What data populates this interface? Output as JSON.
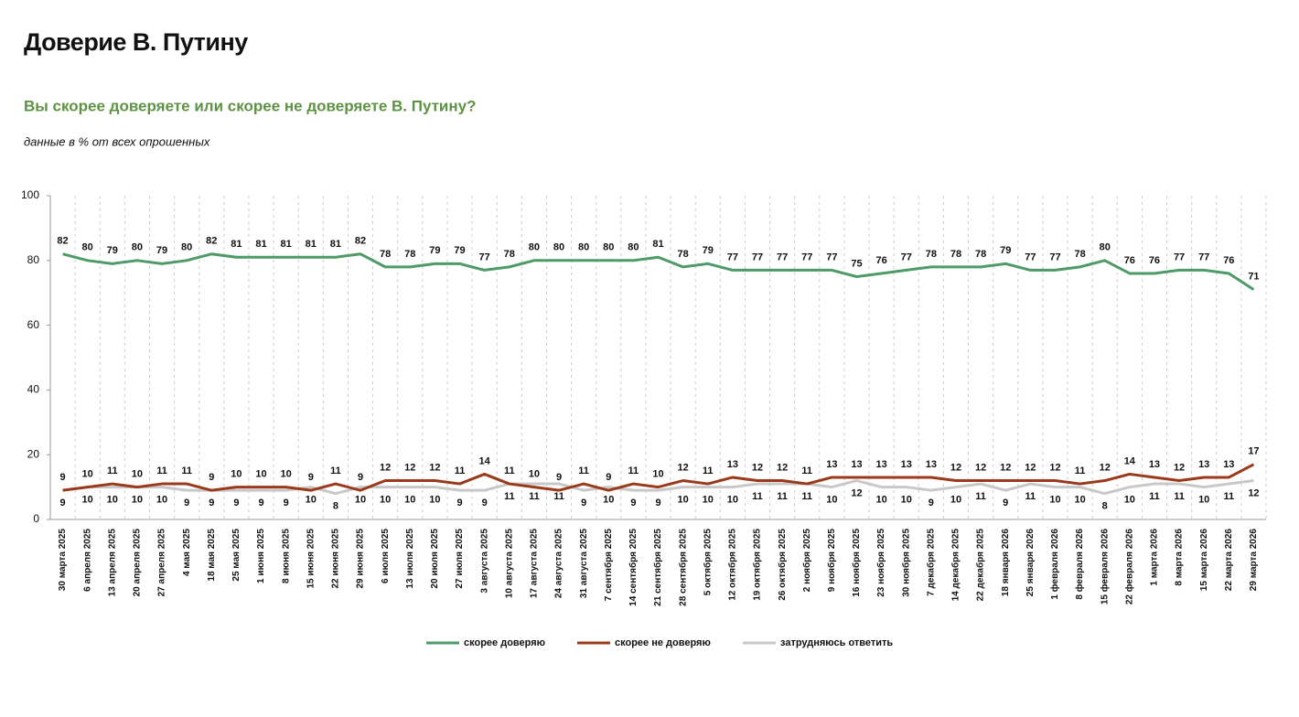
{
  "chart_data": {
    "type": "line",
    "title": "Доверие В. Путину",
    "subtitle": "Вы скорее доверяете или скорее не доверяете В. Путину?",
    "note": "данные в % от всех опрошенных",
    "categories": [
      "30 марта 2025",
      "6 апреля 2025",
      "13 апреля 2025",
      "20 апреля 2025",
      "27 апреля 2025",
      "4 мая 2025",
      "18 мая 2025",
      "25 мая 2025",
      "1 июня 2025",
      "8 июня 2025",
      "15 июня 2025",
      "22 июня 2025",
      "29 июня 2025",
      "6 июля 2025",
      "13 июля 2025",
      "20 июля 2025",
      "27 июля 2025",
      "3 августа 2025",
      "10 августа 2025",
      "17 августа 2025",
      "24 августа 2025",
      "31 августа 2025",
      "7 сентября 2025",
      "14 сентября 2025",
      "21 сентября 2025",
      "28 сентября 2025",
      "5 октября 2025",
      "12 октября 2025",
      "19 октября 2025",
      "26 октября 2025",
      "2 ноября 2025",
      "9 ноября 2025",
      "16 ноября 2025",
      "23 ноября 2025",
      "30 ноября 2025",
      "7 декабря 2025",
      "14 декабря 2025",
      "22 декабря 2025",
      "18 января 2026",
      "25 января 2026",
      "1 февраля 2026",
      "8 февраля 2026",
      "15 февраля 2026",
      "22 февраля 2026",
      "1 марта 2026",
      "8 марта 2026",
      "15 марта 2026",
      "22 марта 2026",
      "29 марта 2026"
    ],
    "series": [
      {
        "name": "скорее доверяю",
        "color": "#4e9a68",
        "values": [
          82,
          80,
          79,
          80,
          79,
          80,
          82,
          81,
          81,
          81,
          81,
          81,
          82,
          78,
          78,
          79,
          79,
          77,
          78,
          80,
          80,
          80,
          80,
          80,
          81,
          78,
          79,
          77,
          77,
          77,
          77,
          77,
          75,
          76,
          77,
          78,
          78,
          78,
          79,
          77,
          77,
          78,
          80,
          76,
          76,
          77,
          77,
          76,
          71
        ]
      },
      {
        "name": "скорее не доверяю",
        "color": "#9a3a1a",
        "values": [
          9,
          10,
          11,
          10,
          11,
          11,
          9,
          10,
          10,
          10,
          9,
          11,
          9,
          12,
          12,
          12,
          11,
          14,
          11,
          10,
          9,
          11,
          9,
          11,
          10,
          12,
          11,
          13,
          12,
          12,
          11,
          13,
          13,
          13,
          13,
          13,
          12,
          12,
          12,
          12,
          12,
          11,
          12,
          14,
          13,
          12,
          13,
          13,
          17
        ]
      },
      {
        "name": "затрудняюсь ответить",
        "color": "#c8c8c8",
        "values": [
          9,
          10,
          10,
          10,
          10,
          9,
          9,
          9,
          9,
          9,
          10,
          8,
          10,
          10,
          10,
          10,
          9,
          9,
          11,
          11,
          11,
          9,
          10,
          9,
          9,
          10,
          10,
          10,
          11,
          11,
          11,
          10,
          12,
          10,
          10,
          9,
          10,
          11,
          9,
          11,
          10,
          10,
          8,
          10,
          11,
          11,
          10,
          11,
          12
        ]
      }
    ],
    "ylim": [
      0,
      100
    ],
    "yticks": [
      0,
      20,
      40,
      60,
      80,
      100
    ],
    "grid": true,
    "legend": "bottom"
  }
}
